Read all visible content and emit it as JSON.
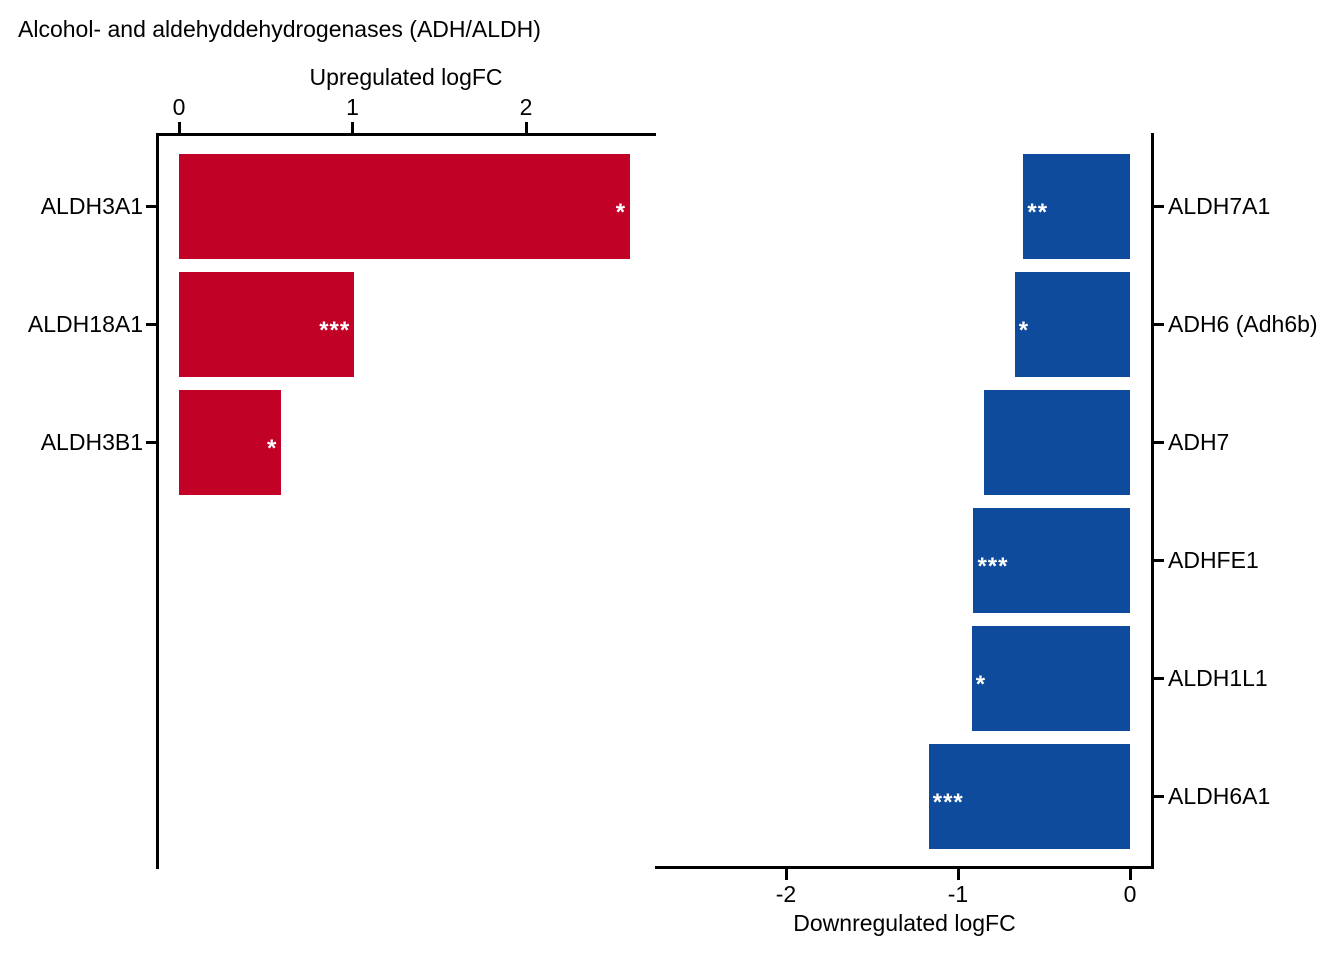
{
  "title": "Alcohol- and aldehyddehydrogenases (ADH/ALDH)",
  "colors": {
    "upregulated_bar": "#C10226",
    "downregulated_bar": "#0E4B9C",
    "axis": "#000000",
    "significance_stars": "#FFFFFF",
    "background": "#FFFFFF"
  },
  "chart_data": [
    {
      "type": "bar",
      "orientation": "horizontal",
      "panel": "upregulated",
      "axis_label": "Upregulated logFC",
      "axis_position": "top",
      "categories": [
        "ALDH3A1",
        "ALDH18A1",
        "ALDH3B1"
      ],
      "values": [
        2.6,
        1.01,
        0.59
      ],
      "significance": [
        "*",
        "***",
        "*"
      ],
      "ticks": [
        0,
        1,
        2
      ],
      "xlim": [
        0,
        2.75
      ],
      "grid": "off",
      "bar_color": "#C10226"
    },
    {
      "type": "bar",
      "orientation": "horizontal",
      "panel": "downregulated",
      "axis_label": "Downregulated logFC",
      "axis_position": "bottom",
      "categories": [
        "ALDH7A1",
        "ADH6 (Adh6b)",
        "ADH7",
        "ADHFE1",
        "ALDH1L1",
        "ALDH6A1"
      ],
      "values": [
        -0.62,
        -0.67,
        -0.85,
        -0.91,
        -0.92,
        -1.17
      ],
      "significance": [
        "**",
        "*",
        "",
        "***",
        "*",
        "***"
      ],
      "ticks": [
        -2,
        -1,
        0
      ],
      "xlim": [
        -2.75,
        0
      ],
      "grid": "off",
      "bar_color": "#0E4B9C"
    }
  ]
}
